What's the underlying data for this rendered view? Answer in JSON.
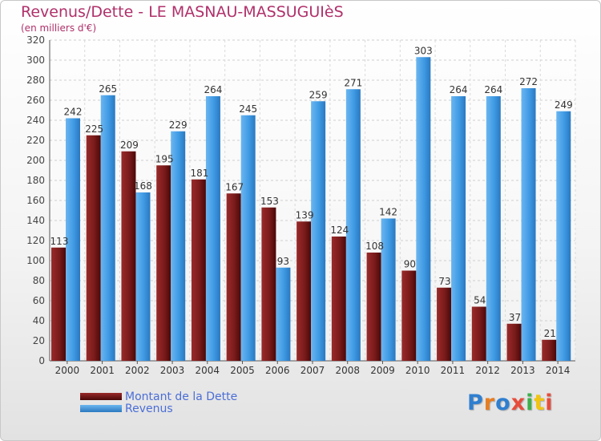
{
  "title": "Revenus/Dette - LE MASNAU-MASSUGUIèS",
  "subtitle": "(en milliers d'€)",
  "legend": {
    "dette": "Montant de la Dette",
    "revenus": "Revenus"
  },
  "logo": {
    "text": "Proxiti",
    "colors": [
      "#2f7fd0",
      "#e67e22",
      "#2f7fd0",
      "#e74c3c",
      "#3cb04a",
      "#f1c40f",
      "#e74c3c"
    ]
  },
  "colors": {
    "dette": "#7a1b1b",
    "revenus": "#3f9ae4",
    "title": "#b0306a",
    "legend_text": "#4b6ed6"
  },
  "chart_data": {
    "type": "bar",
    "categories": [
      "2000",
      "2001",
      "2002",
      "2003",
      "2004",
      "2005",
      "2006",
      "2007",
      "2008",
      "2009",
      "2010",
      "2011",
      "2012",
      "2013",
      "2014"
    ],
    "series": [
      {
        "name": "Montant de la Dette",
        "values": [
          113,
          225,
          209,
          195,
          181,
          167,
          153,
          139,
          124,
          108,
          90,
          73,
          54,
          37,
          21
        ]
      },
      {
        "name": "Revenus",
        "values": [
          242,
          265,
          168,
          229,
          264,
          245,
          93,
          259,
          271,
          142,
          303,
          264,
          264,
          272,
          249
        ]
      }
    ],
    "ylim": [
      0,
      320
    ],
    "yticks": [
      0,
      20,
      40,
      60,
      80,
      100,
      120,
      140,
      160,
      180,
      200,
      220,
      240,
      260,
      280,
      300,
      320
    ],
    "grid": true,
    "legend_position": "bottom-left"
  }
}
